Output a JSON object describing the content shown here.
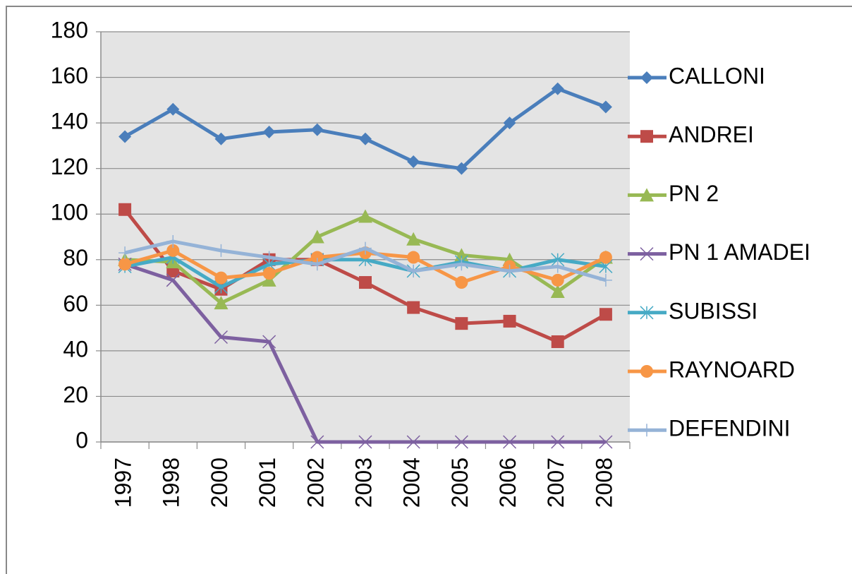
{
  "chart_data": {
    "type": "line",
    "categories": [
      "1997",
      "1998",
      "2000",
      "2001",
      "2002",
      "2003",
      "2004",
      "2005",
      "2006",
      "2007",
      "2008"
    ],
    "series": [
      {
        "name": "CALLONI",
        "color": "#4a7ebb",
        "marker": "diamond",
        "values": [
          134,
          146,
          133,
          136,
          137,
          133,
          123,
          120,
          140,
          155,
          147
        ]
      },
      {
        "name": "ANDREI",
        "color": "#be4b48",
        "marker": "square",
        "values": [
          102,
          75,
          67,
          80,
          80,
          70,
          59,
          52,
          53,
          44,
          56
        ]
      },
      {
        "name": "PN 2",
        "color": "#98b954",
        "marker": "triangle",
        "values": [
          80,
          79,
          61,
          71,
          90,
          99,
          89,
          82,
          80,
          66,
          81
        ]
      },
      {
        "name": "PN 1 AMADEI",
        "color": "#7d60a0",
        "marker": "x",
        "values": [
          78,
          71,
          46,
          44,
          0,
          0,
          0,
          0,
          0,
          0,
          0
        ]
      },
      {
        "name": "SUBISSI",
        "color": "#46aac5",
        "marker": "star",
        "values": [
          77,
          81,
          68,
          78,
          80,
          80,
          75,
          79,
          75,
          80,
          77
        ]
      },
      {
        "name": "RAYNOARD",
        "color": "#f79646",
        "marker": "circle",
        "values": [
          78,
          84,
          72,
          74,
          81,
          83,
          81,
          70,
          77,
          71,
          81
        ]
      },
      {
        "name": "DEFENDINI",
        "color": "#95b3d7",
        "marker": "plus",
        "values": [
          83,
          88,
          84,
          81,
          78,
          85,
          75,
          78,
          75,
          77,
          71
        ]
      }
    ],
    "ylim": [
      0,
      180
    ],
    "yticks": [
      0,
      20,
      40,
      60,
      80,
      100,
      120,
      140,
      160,
      180
    ],
    "grid": true,
    "legend": "right"
  }
}
